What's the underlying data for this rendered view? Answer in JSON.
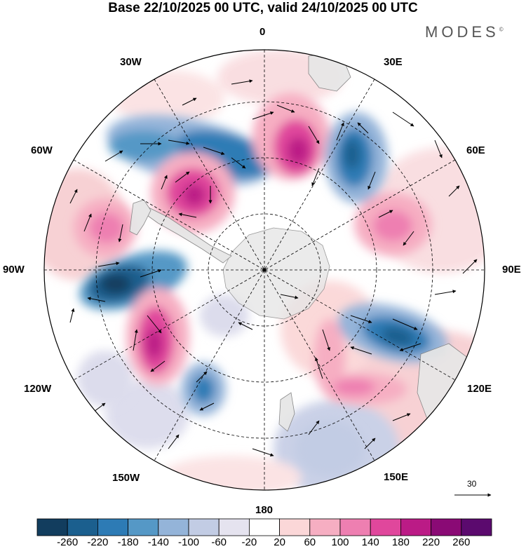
{
  "title": "Base 22/10/2025 00 UTC, valid 24/10/2025 00 UTC",
  "brand": "MODES",
  "brand_mark": "©",
  "longitude_labels": {
    "lon_0": "0",
    "lon_30e": "30E",
    "lon_60e": "60E",
    "lon_90e": "90E",
    "lon_120e": "120E",
    "lon_150e": "150E",
    "lon_180": "180",
    "lon_150w": "150W",
    "lon_120w": "120W",
    "lon_90w": "90W",
    "lon_60w": "60W",
    "lon_30w": "30W"
  },
  "reference_vector": {
    "value": "30"
  },
  "colorbar": {
    "labels": [
      "-260",
      "-220",
      "-180",
      "-140",
      "-100",
      "-60",
      "-20",
      "20",
      "60",
      "100",
      "140",
      "180",
      "220",
      "260"
    ],
    "colors": [
      "#123d5e",
      "#1b5f8e",
      "#2d7bb5",
      "#5598c6",
      "#94b4d9",
      "#c2cce4",
      "#e5e3ef",
      "#ffffff",
      "#fbd7d8",
      "#f6aec2",
      "#ee7fb1",
      "#e0479c",
      "#bb1b86",
      "#8a0a75",
      "#5b0a6e"
    ]
  },
  "map_colors": {
    "land": "#e6e6e6",
    "coast": "#7f7f7f"
  }
}
